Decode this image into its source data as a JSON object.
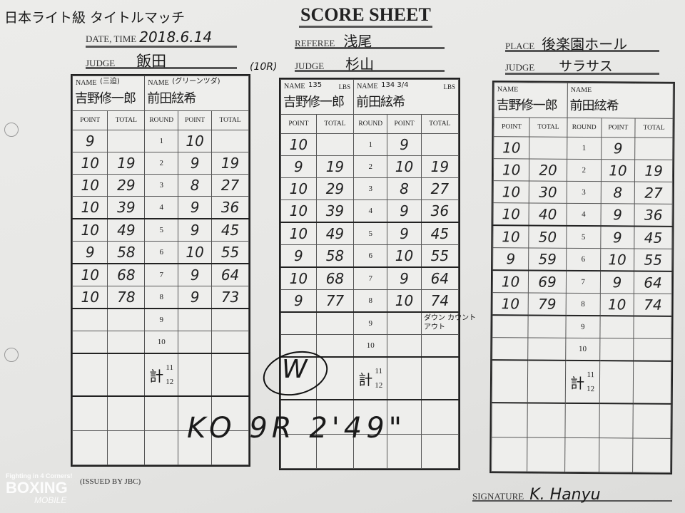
{
  "sheet": {
    "title": "SCORE SHEET",
    "bout_note": "日本ライト級 タイトルマッチ",
    "date_label": "DATE, TIME",
    "date_value": "2018.6.14",
    "referee_label": "REFEREE",
    "referee_value": "浅尾",
    "place_label": "PLACE",
    "place_value": "後楽園ホール",
    "rounds_note": "(10R)",
    "issued_by": "(ISSUED BY JBC)",
    "signature_label": "SIGNATURE",
    "signature_value": "K. Hanyu",
    "watermark_line1": "Fighting in 4 Corners!",
    "watermark_line2": "BOXING",
    "watermark_line3": "MOBILE"
  },
  "columns": [
    "POINT",
    "TOTAL",
    "ROUND",
    "POINT",
    "TOTAL"
  ],
  "name_label": "NAME",
  "lbs_label": "LBS",
  "judges": [
    {
      "judge_label": "JUDGE",
      "judge": "飯田",
      "fighter1": "吉野修一郎",
      "fighter1_note": "(三迫)",
      "fighter2": "前田絃希",
      "fighter2_note": "(グリーンツダ)",
      "rounds": [
        {
          "round": "1",
          "p1": "9",
          "t1": "",
          "p2": "10",
          "t2": ""
        },
        {
          "round": "2",
          "p1": "10",
          "t1": "19",
          "p2": "9",
          "t2": "19"
        },
        {
          "round": "3",
          "p1": "10",
          "t1": "29",
          "p2": "8",
          "t2": "27"
        },
        {
          "round": "4",
          "p1": "10",
          "t1": "39",
          "p2": "9",
          "t2": "36"
        },
        {
          "round": "5",
          "p1": "10",
          "t1": "49",
          "p2": "9",
          "t2": "45"
        },
        {
          "round": "6",
          "p1": "9",
          "t1": "58",
          "p2": "10",
          "t2": "55"
        },
        {
          "round": "7",
          "p1": "10",
          "t1": "68",
          "p2": "9",
          "t2": "64"
        },
        {
          "round": "8",
          "p1": "10",
          "t1": "78",
          "p2": "9",
          "t2": "73"
        },
        {
          "round": "9",
          "p1": "",
          "t1": "",
          "p2": "",
          "t2": ""
        },
        {
          "round": "10",
          "p1": "",
          "t1": "",
          "p2": "",
          "t2": ""
        }
      ],
      "total_mark": "計"
    },
    {
      "judge_label": "JUDGE",
      "judge": "杉山",
      "fighter1": "吉野修一郎",
      "fighter1_note": "135",
      "fighter2": "前田絃希",
      "fighter2_note": "134 3/4",
      "rounds": [
        {
          "round": "1",
          "p1": "10",
          "t1": "",
          "p2": "9",
          "t2": ""
        },
        {
          "round": "2",
          "p1": "9",
          "t1": "19",
          "p2": "10",
          "t2": "19"
        },
        {
          "round": "3",
          "p1": "10",
          "t1": "29",
          "p2": "8",
          "t2": "27"
        },
        {
          "round": "4",
          "p1": "10",
          "t1": "39",
          "p2": "9",
          "t2": "36"
        },
        {
          "round": "5",
          "p1": "10",
          "t1": "49",
          "p2": "9",
          "t2": "45"
        },
        {
          "round": "6",
          "p1": "9",
          "t1": "58",
          "p2": "10",
          "t2": "55"
        },
        {
          "round": "7",
          "p1": "10",
          "t1": "68",
          "p2": "9",
          "t2": "64"
        },
        {
          "round": "8",
          "p1": "9",
          "t1": "77",
          "p2": "10",
          "t2": "74"
        },
        {
          "round": "9",
          "p1": "",
          "t1": "",
          "p2": "",
          "t2": ""
        },
        {
          "round": "10",
          "p1": "",
          "t1": "",
          "p2": "",
          "t2": ""
        }
      ],
      "total_mark": "計",
      "down_note": "ダウン カウントアウト",
      "winner_mark": "W",
      "result": "KO 9R 2'49\""
    },
    {
      "judge_label": "JUDGE",
      "judge": "サラサス",
      "fighter1": "吉野修一郎",
      "fighter1_note": "",
      "fighter2": "前田絃希",
      "fighter2_note": "",
      "rounds": [
        {
          "round": "1",
          "p1": "10",
          "t1": "",
          "p2": "9",
          "t2": ""
        },
        {
          "round": "2",
          "p1": "10",
          "t1": "20",
          "p2": "10",
          "t2": "19"
        },
        {
          "round": "3",
          "p1": "10",
          "t1": "30",
          "p2": "8",
          "t2": "27"
        },
        {
          "round": "4",
          "p1": "10",
          "t1": "40",
          "p2": "9",
          "t2": "36"
        },
        {
          "round": "5",
          "p1": "10",
          "t1": "50",
          "p2": "9",
          "t2": "45"
        },
        {
          "round": "6",
          "p1": "9",
          "t1": "59",
          "p2": "10",
          "t2": "55"
        },
        {
          "round": "7",
          "p1": "10",
          "t1": "69",
          "p2": "9",
          "t2": "64"
        },
        {
          "round": "8",
          "p1": "10",
          "t1": "79",
          "p2": "10",
          "t2": "74"
        },
        {
          "round": "9",
          "p1": "",
          "t1": "",
          "p2": "",
          "t2": ""
        },
        {
          "round": "10",
          "p1": "",
          "t1": "",
          "p2": "",
          "t2": ""
        }
      ],
      "total_mark": "計"
    }
  ],
  "extra_rounds": [
    "11",
    "12"
  ]
}
